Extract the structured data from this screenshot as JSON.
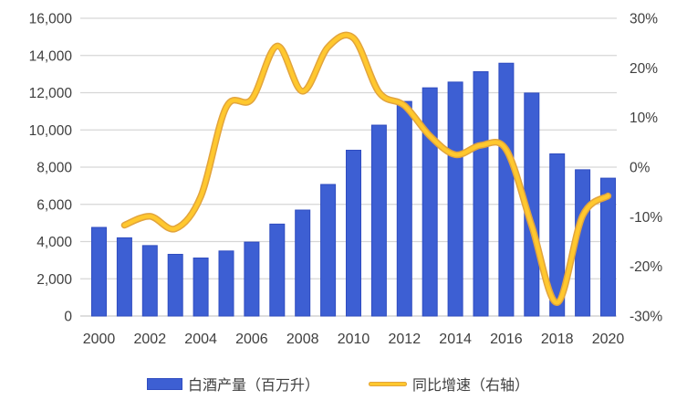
{
  "legend": {
    "bar_label": "白酒产量（百万升）",
    "line_label": "同比增速（右轴）"
  },
  "colors": {
    "bar_fill": "#3d5fd3",
    "bar_border": "#2f4cc0",
    "line_core": "#ffc82e",
    "line_edge": "#e2a43c",
    "gridline": "#d6d6d6",
    "baseline": "#c9c9c9",
    "text": "#3f3f3f",
    "background": "#ffffff"
  },
  "chart_data": {
    "type": "bar+line combo",
    "title": "",
    "categories": [
      "2000",
      "2001",
      "2002",
      "2003",
      "2004",
      "2005",
      "2006",
      "2007",
      "2008",
      "2009",
      "2010",
      "2011",
      "2012",
      "2013",
      "2014",
      "2015",
      "2016",
      "2017",
      "2018",
      "2019",
      "2020"
    ],
    "series": [
      {
        "name": "白酒产量（百万升）",
        "type": "bar",
        "axis": "left",
        "values": [
          4761,
          4202,
          3785,
          3314,
          3117,
          3494,
          3971,
          4939,
          5693,
          7069,
          8908,
          10256,
          11531,
          12262,
          12571,
          13128,
          13584,
          11981,
          8712,
          7859,
          7407
        ]
      },
      {
        "name": "同比增速（右轴）",
        "type": "line",
        "axis": "right",
        "unit": "%",
        "smoothed": true,
        "values": [
          null,
          -11.7,
          -9.9,
          -12.4,
          -5.9,
          12.1,
          13.7,
          24.4,
          15.3,
          24.2,
          26.0,
          15.1,
          12.4,
          6.3,
          2.5,
          4.4,
          3.5,
          -11.8,
          -27.3,
          -9.8,
          -5.8
        ]
      }
    ],
    "left_axis": {
      "min": 0,
      "max": 16000,
      "tick_step": 2000,
      "tick_labels_top_down": [
        "16,000",
        "14,000",
        "12,000",
        "10,000",
        "8,000",
        "6,000",
        "4,000",
        "2,000",
        "0"
      ]
    },
    "right_axis": {
      "min": -30,
      "max": 30,
      "tick_step": 10,
      "tick_labels_top_down": [
        "30%",
        "20%",
        "10%",
        "0%",
        "-10%",
        "-20%",
        "-30%"
      ]
    },
    "x_tick_labels": [
      "2000",
      "2002",
      "2004",
      "2006",
      "2008",
      "2010",
      "2012",
      "2014",
      "2016",
      "2018",
      "2020"
    ],
    "grid": true,
    "legend_position": "bottom"
  }
}
